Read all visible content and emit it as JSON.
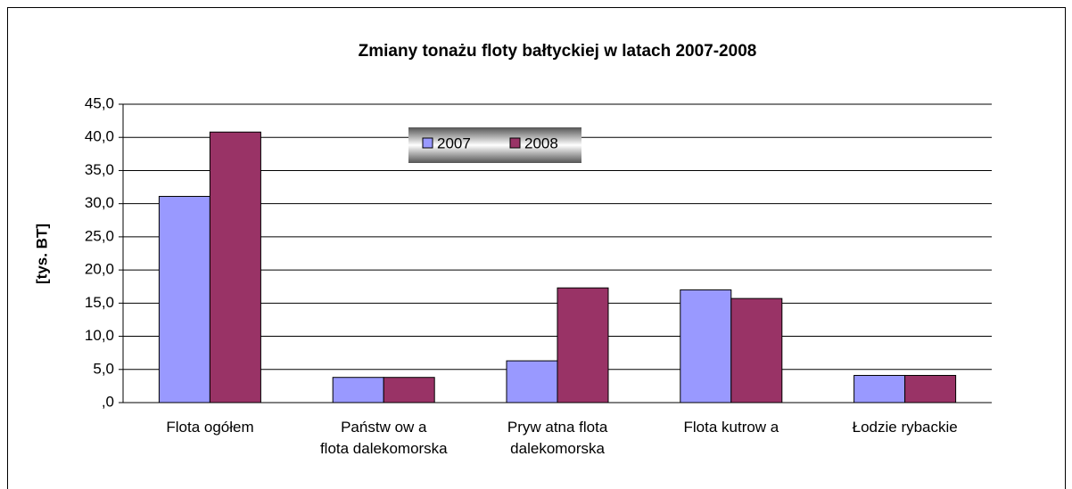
{
  "chart_data": {
    "type": "bar",
    "title": "Zmiany tonażu floty bałtyckiej w latach 2007-2008",
    "y_label": "[tys. BT]",
    "categories": [
      "Flota ogółem",
      "Państw ow a\nflota dalekomorska",
      "Pryw atna flota\ndalekomorska",
      "Flota kutrow a",
      "Łodzie rybackie"
    ],
    "series": [
      {
        "name": "2007",
        "color": "#9999ff",
        "values": [
          31.1,
          3.8,
          6.3,
          17.0,
          4.1
        ]
      },
      {
        "name": "2008",
        "color": "#993366",
        "values": [
          40.8,
          3.8,
          17.3,
          15.7,
          4.1
        ]
      }
    ],
    "ylim": [
      0,
      45
    ],
    "yticks": [
      {
        "value": 0,
        "label": ",0"
      },
      {
        "value": 5,
        "label": "5,0"
      },
      {
        "value": 10,
        "label": "10,0"
      },
      {
        "value": 15,
        "label": "15,0"
      },
      {
        "value": 20,
        "label": "20,0"
      },
      {
        "value": 25,
        "label": "25,0"
      },
      {
        "value": 30,
        "label": "30,0"
      },
      {
        "value": 35,
        "label": "35,0"
      },
      {
        "value": 40,
        "label": "40,0"
      },
      {
        "value": 45,
        "label": "45,0"
      }
    ],
    "grid": true,
    "legend": "top"
  }
}
